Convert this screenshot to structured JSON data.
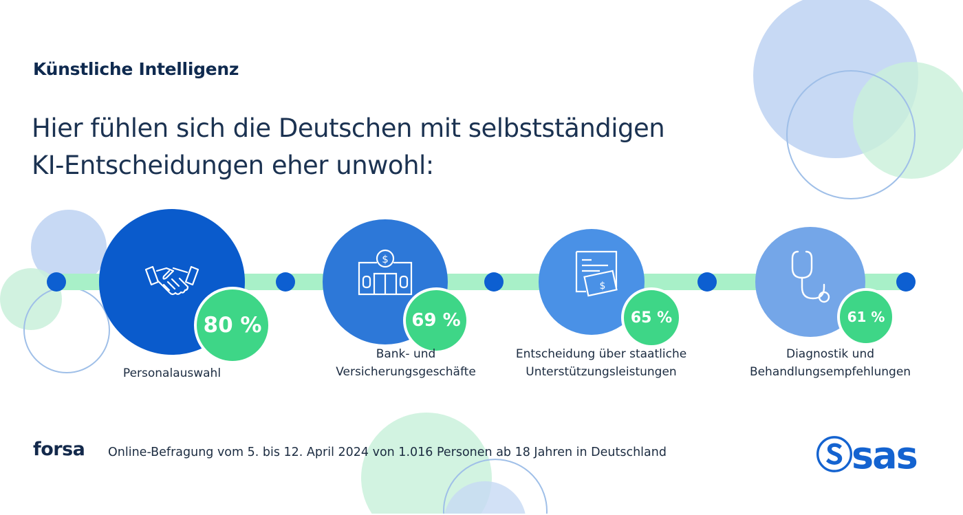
{
  "header": {
    "kicker": "Künstliche Intelligenz",
    "headline_line1": "Hier fühlen sich die Deutschen mit selbstständigen",
    "headline_line2": "KI-Entscheidungen eher unwohl:"
  },
  "items": [
    {
      "icon": "handshake-icon",
      "value": "80 %",
      "label_line1": "Personalauswahl",
      "label_line2": ""
    },
    {
      "icon": "bank-icon",
      "value": "69 %",
      "label_line1": "Bank- und",
      "label_line2": "Versicherungsgeschäfte"
    },
    {
      "icon": "document-money-icon",
      "value": "65 %",
      "label_line1": "Entscheidung über staatliche",
      "label_line2": "Unterstützungsleistungen"
    },
    {
      "icon": "stethoscope-icon",
      "value": "61 %",
      "label_line1": "Diagnostik und",
      "label_line2": "Behandlungsempfehlungen"
    }
  ],
  "footer": {
    "source_brand": "forsa",
    "source_text": "Online-Befragung vom 5. bis 12. April 2024 von 1.016 Personen ab 18 Jahren in Deutschland",
    "logo": "sas"
  },
  "colors": {
    "navy": "#13294b",
    "blue_dark": "#0a5bcc",
    "blue_mid": "#2d78d8",
    "blue_light": "#4a91e6",
    "blue_pale": "#74a6e8",
    "green": "#3ed687",
    "track": "#a8f0c8"
  }
}
